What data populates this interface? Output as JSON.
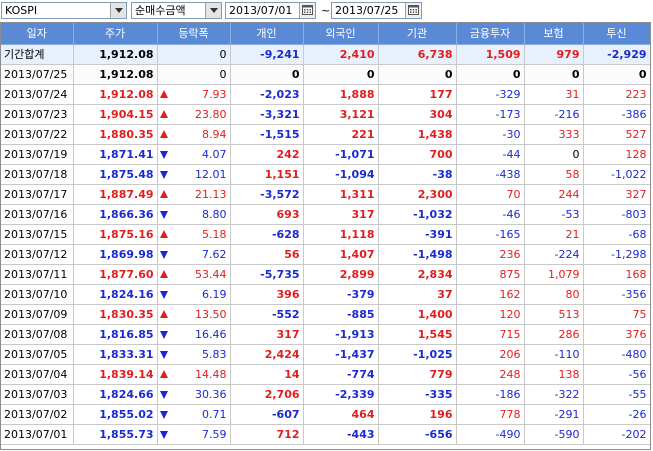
{
  "toolbar": {
    "market": "KOSPI",
    "metric": "순매수금액",
    "date_from": "2013/07/01",
    "date_to": "2013/07/25",
    "separator": "~"
  },
  "colors": {
    "header_bg": "#5a8ad6",
    "up": "#e01e1e",
    "down": "#1a2ad0"
  },
  "columns": [
    "일자",
    "주가",
    "등락폭",
    "개인",
    "외국인",
    "기관",
    "금융투자",
    "보험",
    "투신"
  ],
  "rows": [
    {
      "date": "기간합계",
      "price": "1,912.08",
      "dir": "",
      "chg": "0",
      "ind": "-9,241",
      "frg": "2,410",
      "inst": "6,738",
      "fin": "1,509",
      "ins": "979",
      "inv": "-2,929"
    },
    {
      "date": "2013/07/25",
      "price": "1,912.08",
      "dir": "",
      "chg": "0",
      "ind": "0",
      "frg": "0",
      "inst": "0",
      "fin": "0",
      "ins": "0",
      "inv": "0"
    },
    {
      "date": "2013/07/24",
      "price": "1,912.08",
      "dir": "up",
      "chg": "7.93",
      "ind": "-2,023",
      "frg": "1,888",
      "inst": "177",
      "fin": "-329",
      "ins": "31",
      "inv": "223"
    },
    {
      "date": "2013/07/23",
      "price": "1,904.15",
      "dir": "up",
      "chg": "23.80",
      "ind": "-3,321",
      "frg": "3,121",
      "inst": "304",
      "fin": "-173",
      "ins": "-216",
      "inv": "-386"
    },
    {
      "date": "2013/07/22",
      "price": "1,880.35",
      "dir": "up",
      "chg": "8.94",
      "ind": "-1,515",
      "frg": "221",
      "inst": "1,438",
      "fin": "-30",
      "ins": "333",
      "inv": "527"
    },
    {
      "date": "2013/07/19",
      "price": "1,871.41",
      "dir": "down",
      "chg": "4.07",
      "ind": "242",
      "frg": "-1,071",
      "inst": "700",
      "fin": "-44",
      "ins": "0",
      "inv": "128"
    },
    {
      "date": "2013/07/18",
      "price": "1,875.48",
      "dir": "down",
      "chg": "12.01",
      "ind": "1,151",
      "frg": "-1,094",
      "inst": "-38",
      "fin": "-438",
      "ins": "58",
      "inv": "-1,022"
    },
    {
      "date": "2013/07/17",
      "price": "1,887.49",
      "dir": "up",
      "chg": "21.13",
      "ind": "-3,572",
      "frg": "1,311",
      "inst": "2,300",
      "fin": "70",
      "ins": "244",
      "inv": "327"
    },
    {
      "date": "2013/07/16",
      "price": "1,866.36",
      "dir": "down",
      "chg": "8.80",
      "ind": "693",
      "frg": "317",
      "inst": "-1,032",
      "fin": "-46",
      "ins": "-53",
      "inv": "-803"
    },
    {
      "date": "2013/07/15",
      "price": "1,875.16",
      "dir": "up",
      "chg": "5.18",
      "ind": "-628",
      "frg": "1,118",
      "inst": "-391",
      "fin": "-165",
      "ins": "21",
      "inv": "-68"
    },
    {
      "date": "2013/07/12",
      "price": "1,869.98",
      "dir": "down",
      "chg": "7.62",
      "ind": "56",
      "frg": "1,407",
      "inst": "-1,498",
      "fin": "236",
      "ins": "-224",
      "inv": "-1,298"
    },
    {
      "date": "2013/07/11",
      "price": "1,877.60",
      "dir": "up",
      "chg": "53.44",
      "ind": "-5,735",
      "frg": "2,899",
      "inst": "2,834",
      "fin": "875",
      "ins": "1,079",
      "inv": "168"
    },
    {
      "date": "2013/07/10",
      "price": "1,824.16",
      "dir": "down",
      "chg": "6.19",
      "ind": "396",
      "frg": "-379",
      "inst": "37",
      "fin": "162",
      "ins": "80",
      "inv": "-356"
    },
    {
      "date": "2013/07/09",
      "price": "1,830.35",
      "dir": "up",
      "chg": "13.50",
      "ind": "-552",
      "frg": "-885",
      "inst": "1,400",
      "fin": "120",
      "ins": "513",
      "inv": "75"
    },
    {
      "date": "2013/07/08",
      "price": "1,816.85",
      "dir": "down",
      "chg": "16.46",
      "ind": "317",
      "frg": "-1,913",
      "inst": "1,545",
      "fin": "715",
      "ins": "286",
      "inv": "376"
    },
    {
      "date": "2013/07/05",
      "price": "1,833.31",
      "dir": "down",
      "chg": "5.83",
      "ind": "2,424",
      "frg": "-1,437",
      "inst": "-1,025",
      "fin": "206",
      "ins": "-110",
      "inv": "-480"
    },
    {
      "date": "2013/07/04",
      "price": "1,839.14",
      "dir": "up",
      "chg": "14.48",
      "ind": "14",
      "frg": "-774",
      "inst": "779",
      "fin": "248",
      "ins": "138",
      "inv": "-56"
    },
    {
      "date": "2013/07/03",
      "price": "1,824.66",
      "dir": "down",
      "chg": "30.36",
      "ind": "2,706",
      "frg": "-2,339",
      "inst": "-335",
      "fin": "-186",
      "ins": "-322",
      "inv": "-55"
    },
    {
      "date": "2013/07/02",
      "price": "1,855.02",
      "dir": "down",
      "chg": "0.71",
      "ind": "-607",
      "frg": "464",
      "inst": "196",
      "fin": "778",
      "ins": "-291",
      "inv": "-26"
    },
    {
      "date": "2013/07/01",
      "price": "1,855.73",
      "dir": "down",
      "chg": "7.59",
      "ind": "712",
      "frg": "-443",
      "inst": "-656",
      "fin": "-490",
      "ins": "-590",
      "inv": "-202"
    }
  ]
}
